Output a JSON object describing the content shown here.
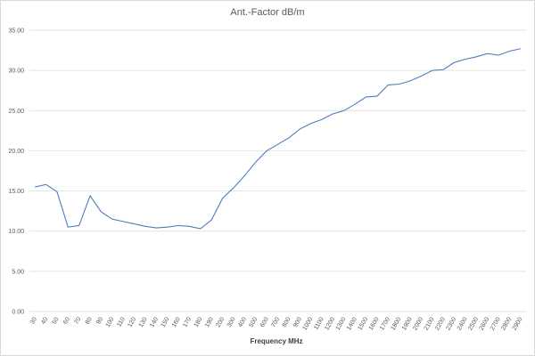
{
  "chart_data": {
    "type": "line",
    "title": "Ant.-Factor dB/m",
    "x_label": "Frequency MHz",
    "categories": [
      "30",
      "40",
      "50",
      "60",
      "70",
      "80",
      "90",
      "100",
      "110",
      "120",
      "130",
      "140",
      "150",
      "160",
      "170",
      "180",
      "190",
      "200",
      "300",
      "400",
      "500",
      "600",
      "700",
      "800",
      "900",
      "1000",
      "1100",
      "1200",
      "1300",
      "1400",
      "1500",
      "1600",
      "1700",
      "1800",
      "1900",
      "2000",
      "2100",
      "2200",
      "2300",
      "2400",
      "2500",
      "2600",
      "2700",
      "2800",
      "2900"
    ],
    "values": [
      15.5,
      15.8,
      14.9,
      10.5,
      10.7,
      14.4,
      12.4,
      11.5,
      11.2,
      10.9,
      10.6,
      10.4,
      10.5,
      10.7,
      10.6,
      10.3,
      11.4,
      14.1,
      15.4,
      16.9,
      18.6,
      20.0,
      20.8,
      21.6,
      22.7,
      23.4,
      23.9,
      24.6,
      25.0,
      25.8,
      26.7,
      26.8,
      28.2,
      28.3,
      28.7,
      29.3,
      30.0,
      30.1,
      31.0,
      31.4,
      31.7,
      32.1,
      31.9,
      32.4,
      32.7
    ],
    "color": "#4a7ebb",
    "ylim": [
      0,
      35
    ],
    "yticks": [
      {
        "value": 0,
        "label": "0.00"
      },
      {
        "value": 5,
        "label": "5.00"
      },
      {
        "value": 10,
        "label": "10.00"
      },
      {
        "value": 15,
        "label": "15.00"
      },
      {
        "value": 20,
        "label": "20.00"
      },
      {
        "value": 25,
        "label": "25.00"
      },
      {
        "value": 30,
        "label": "30.00"
      },
      {
        "value": 35,
        "label": "35.00"
      }
    ],
    "grid": true
  }
}
